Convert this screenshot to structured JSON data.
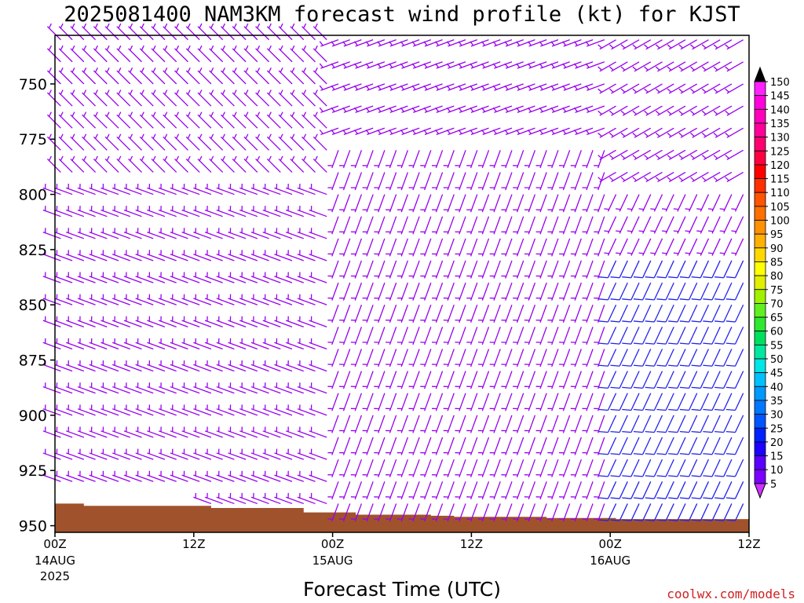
{
  "chart_data": {
    "type": "wind-barb-profile",
    "title": "2025081400 NAM3KM forecast wind profile (kt) for KJST",
    "xlabel": "Forecast Time (UTC)",
    "ylabel": "",
    "credit": "coolwx.com/models",
    "x_range_hours": [
      0,
      60
    ],
    "y_range_hpa": [
      728,
      953
    ],
    "y_ticks": [
      "750",
      "775",
      "800",
      "825",
      "850",
      "875",
      "900",
      "925",
      "950"
    ],
    "x_ticks": [
      {
        "hour": 0,
        "label": "00Z",
        "sub1": "14AUG",
        "sub2": "2025"
      },
      {
        "hour": 12,
        "label": "12Z",
        "sub1": "",
        "sub2": ""
      },
      {
        "hour": 24,
        "label": "00Z",
        "sub1": "15AUG",
        "sub2": ""
      },
      {
        "hour": 36,
        "label": "12Z",
        "sub1": "",
        "sub2": ""
      },
      {
        "hour": 48,
        "label": "00Z",
        "sub1": "16AUG",
        "sub2": ""
      },
      {
        "hour": 60,
        "label": "12Z",
        "sub1": "",
        "sub2": ""
      }
    ],
    "legend": {
      "placement": "right",
      "levels": [
        5,
        10,
        15,
        20,
        25,
        30,
        35,
        40,
        45,
        50,
        55,
        60,
        65,
        70,
        75,
        80,
        85,
        90,
        95,
        100,
        105,
        110,
        115,
        120,
        125,
        130,
        135,
        140,
        145,
        150
      ],
      "colors": [
        "#9d00ff",
        "#7b00ff",
        "#5a00ff",
        "#1d00ff",
        "#0022ff",
        "#0055ff",
        "#0077ff",
        "#0099ff",
        "#00c0ff",
        "#00e5e5",
        "#00e8a0",
        "#00e060",
        "#30e830",
        "#60f020",
        "#a0f000",
        "#e0f000",
        "#ffff00",
        "#ffd800",
        "#ffb000",
        "#ff9000",
        "#ff7000",
        "#ff5500",
        "#ff3000",
        "#ff0000",
        "#ff0040",
        "#ff0070",
        "#ff0099",
        "#ff00bb",
        "#ff00dd",
        "#ff22ff"
      ],
      "arrow_top": "#000000",
      "arrow_bottom": "#cc33ff"
    },
    "terrain": {
      "color": "#a0522d",
      "profile": [
        {
          "h": 0,
          "p": 940
        },
        {
          "h": 2.5,
          "p": 941
        },
        {
          "h": 9.5,
          "p": 941
        },
        {
          "h": 13.5,
          "p": 942
        },
        {
          "h": 21.5,
          "p": 944
        },
        {
          "h": 26,
          "p": 945
        },
        {
          "h": 30.5,
          "p": 945
        },
        {
          "h": 32.5,
          "p": 945.5
        },
        {
          "h": 34.5,
          "p": 946
        },
        {
          "h": 42.5,
          "p": 946.5
        },
        {
          "h": 48.5,
          "p": 947
        },
        {
          "h": 60,
          "p": 946
        }
      ]
    },
    "barbs": {
      "hours_start": 0.5,
      "hours_step": 1.0,
      "count": 60,
      "levels_hpa": [
        730,
        740,
        750,
        760,
        770,
        780,
        790,
        800,
        810,
        820,
        830,
        840,
        850,
        860,
        870,
        880,
        890,
        900,
        910,
        920,
        930,
        940,
        950
      ],
      "speed_default_kt": 5,
      "speed_late_low_kt": 12,
      "color_slow": "#9900ee",
      "color_fast": "#2222ee",
      "direction_segments": [
        {
          "h0": 0,
          "h1": 24,
          "p0": 728,
          "p1": 800,
          "dir_deg": 315
        },
        {
          "h0": 0,
          "h1": 24,
          "p0": 800,
          "p1": 953,
          "dir_deg": 290
        },
        {
          "h0": 24,
          "h1": 48,
          "p0": 728,
          "p1": 780,
          "dir_deg": 250
        },
        {
          "h0": 24,
          "h1": 48,
          "p0": 780,
          "p1": 953,
          "dir_deg": 200
        },
        {
          "h0": 48,
          "h1": 61,
          "p0": 728,
          "p1": 800,
          "dir_deg": 240
        },
        {
          "h0": 48,
          "h1": 61,
          "p0": 800,
          "p1": 953,
          "dir_deg": 205
        }
      ]
    }
  }
}
